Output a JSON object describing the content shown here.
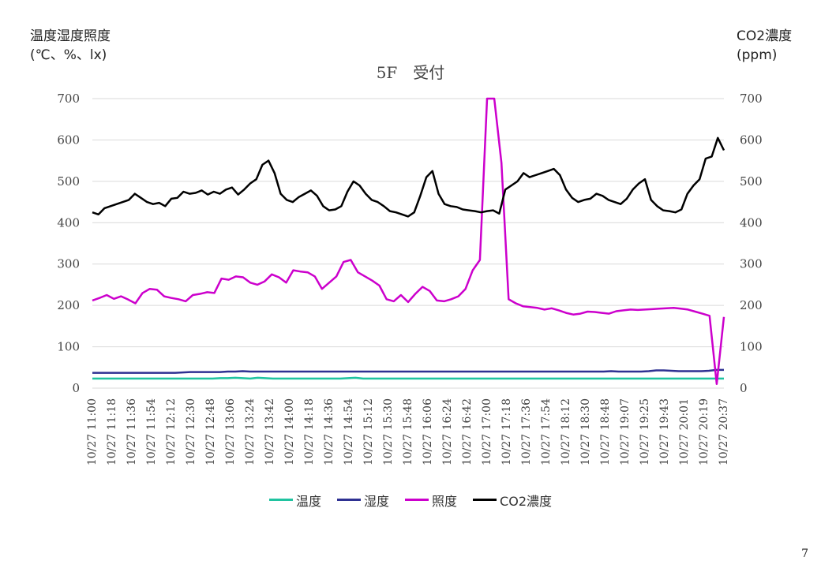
{
  "page_number": "7",
  "chart_data": {
    "type": "line",
    "title": "5F　受付",
    "ylabel": [
      "温度湿度照度",
      "(℃、%、lx)"
    ],
    "y2label": [
      "CO2濃度",
      "(ppm)"
    ],
    "ylim": [
      0,
      700
    ],
    "y2lim": [
      0,
      700
    ],
    "yticks": [
      0,
      100,
      200,
      300,
      400,
      500,
      600,
      700
    ],
    "grid": true,
    "legend_position": "bottom",
    "x_tick_labels": [
      "10/27 11:00",
      "10/27 11:18",
      "10/27 11:36",
      "10/27 11:54",
      "10/27 12:12",
      "10/27 12:30",
      "10/27 12:48",
      "10/27 13:06",
      "10/27 13:24",
      "10/27 13:42",
      "10/27 14:00",
      "10/27 14:18",
      "10/27 14:36",
      "10/27 14:54",
      "10/27 15:12",
      "10/27 15:30",
      "10/27 15:48",
      "10/27 16:06",
      "10/27 16:24",
      "10/27 16:42",
      "10/27 17:00",
      "10/27 17:18",
      "10/27 17:36",
      "10/27 17:54",
      "10/27 18:12",
      "10/27 18:30",
      "10/27 18:48",
      "10/27 19:07",
      "10/27 19:25",
      "10/27 19:43",
      "10/27 20:01",
      "10/27 20:19",
      "10/27 20:37"
    ],
    "series": [
      {
        "name": "温度",
        "color": "#20c3a0",
        "axis": "left",
        "values": [
          23,
          23,
          23,
          23,
          23,
          23,
          23,
          23,
          23,
          23,
          23,
          23,
          23,
          23,
          23,
          23,
          23,
          24,
          24,
          25,
          24,
          23,
          25,
          24,
          23,
          23,
          23,
          23,
          23,
          23,
          23,
          23,
          23,
          23,
          24,
          25,
          23,
          23,
          23,
          23,
          23,
          23,
          23,
          23,
          23,
          23,
          23,
          23,
          23,
          23,
          23,
          23,
          23,
          23,
          23,
          23,
          23,
          23,
          23,
          23,
          23,
          23,
          23,
          23,
          23,
          23,
          23,
          23,
          23,
          23,
          23,
          23,
          23,
          23,
          23,
          23,
          23,
          23,
          23,
          23,
          23,
          23,
          23,
          23,
          23
        ]
      },
      {
        "name": "湿度",
        "color": "#2e3192",
        "axis": "left",
        "values": [
          37,
          37,
          37,
          37,
          37,
          37,
          37,
          37,
          37,
          37,
          37,
          37,
          38,
          39,
          39,
          39,
          39,
          39,
          40,
          40,
          41,
          40,
          40,
          40,
          40,
          40,
          40,
          40,
          40,
          40,
          40,
          40,
          40,
          40,
          40,
          40,
          40,
          40,
          40,
          40,
          40,
          40,
          40,
          40,
          40,
          40,
          40,
          40,
          40,
          40,
          40,
          40,
          40,
          40,
          40,
          40,
          40,
          40,
          40,
          40,
          40,
          40,
          40,
          40,
          40,
          40,
          40,
          40,
          40,
          41,
          40,
          40,
          40,
          40,
          41,
          43,
          43,
          42,
          41,
          41,
          41,
          41,
          42,
          44,
          44
        ]
      },
      {
        "name": "照度",
        "color": "#cc00cc",
        "axis": "left",
        "values": [
          212,
          218,
          225,
          216,
          222,
          214,
          205,
          230,
          240,
          238,
          222,
          218,
          215,
          210,
          225,
          228,
          232,
          230,
          265,
          262,
          270,
          268,
          255,
          250,
          258,
          275,
          268,
          255,
          285,
          282,
          280,
          270,
          240,
          255,
          270,
          305,
          310,
          280,
          270,
          260,
          248,
          215,
          210,
          225,
          208,
          228,
          245,
          235,
          212,
          210,
          215,
          222,
          240,
          285,
          310,
          700,
          700,
          545,
          215,
          205,
          198,
          196,
          194,
          190,
          193,
          188,
          182,
          178,
          180,
          185,
          184,
          182,
          180,
          186,
          188,
          190,
          189,
          190,
          191,
          192,
          193,
          194,
          192,
          190,
          185,
          180,
          175,
          10,
          172
        ]
      },
      {
        "name": "CO2濃度",
        "color": "#000000",
        "axis": "right",
        "values": [
          425,
          420,
          435,
          440,
          445,
          450,
          455,
          470,
          460,
          450,
          445,
          448,
          440,
          458,
          460,
          475,
          470,
          472,
          478,
          468,
          475,
          470,
          480,
          485,
          468,
          480,
          495,
          505,
          540,
          550,
          520,
          470,
          455,
          450,
          462,
          470,
          478,
          465,
          440,
          430,
          432,
          440,
          475,
          500,
          490,
          470,
          455,
          450,
          440,
          428,
          425,
          420,
          415,
          425,
          465,
          510,
          525,
          470,
          445,
          440,
          438,
          432,
          430,
          428,
          425,
          428,
          430,
          422,
          480,
          490,
          500,
          520,
          510,
          515,
          520,
          525,
          530,
          515,
          480,
          460,
          450,
          455,
          458,
          470,
          465,
          455,
          450,
          445,
          458,
          480,
          495,
          505,
          455,
          440,
          430,
          428,
          425,
          432,
          470,
          490,
          505,
          555,
          560,
          605,
          575
        ]
      }
    ]
  },
  "legend": [
    {
      "label": "温度",
      "color": "#20c3a0"
    },
    {
      "label": "湿度",
      "color": "#2e3192"
    },
    {
      "label": "照度",
      "color": "#cc00cc"
    },
    {
      "label": "CO2濃度",
      "color": "#000000"
    }
  ]
}
